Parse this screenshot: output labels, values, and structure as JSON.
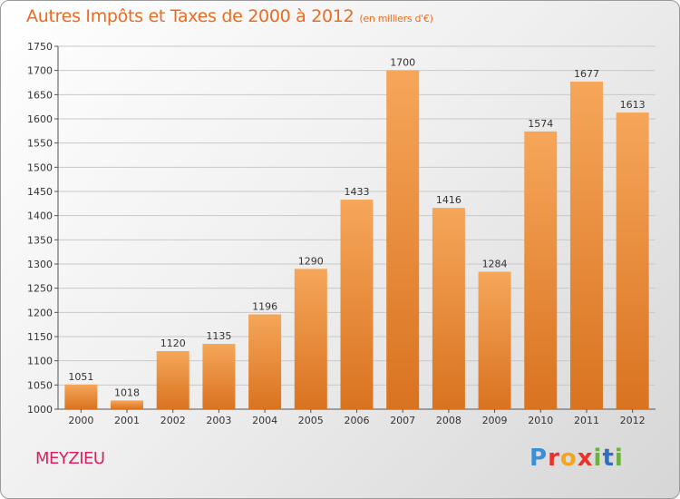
{
  "header": {
    "title": "Autres Impôts et Taxes de 2000 à 2012",
    "subtitle": "(en milliers d'€)"
  },
  "footer": {
    "city": "MEYZIEU",
    "logo": "Proxiti"
  },
  "colors": {
    "title": "#ec6b1f",
    "city": "#d8225d",
    "bar_light": "#f6a65a",
    "bar_dark": "#d97320"
  },
  "chart_data": {
    "type": "bar",
    "categories": [
      "2000",
      "2001",
      "2002",
      "2003",
      "2004",
      "2005",
      "2006",
      "2007",
      "2008",
      "2009",
      "2010",
      "2011",
      "2012"
    ],
    "values": [
      1051,
      1018,
      1120,
      1135,
      1196,
      1290,
      1433,
      1700,
      1416,
      1284,
      1574,
      1677,
      1613
    ],
    "title": "Autres Impôts et Taxes de 2000 à 2012",
    "ylim": [
      1000,
      1750
    ],
    "yticks": [
      1000,
      1050,
      1100,
      1150,
      1200,
      1250,
      1300,
      1350,
      1400,
      1450,
      1500,
      1550,
      1600,
      1650,
      1700,
      1750
    ],
    "grid": true,
    "legend": "none"
  }
}
